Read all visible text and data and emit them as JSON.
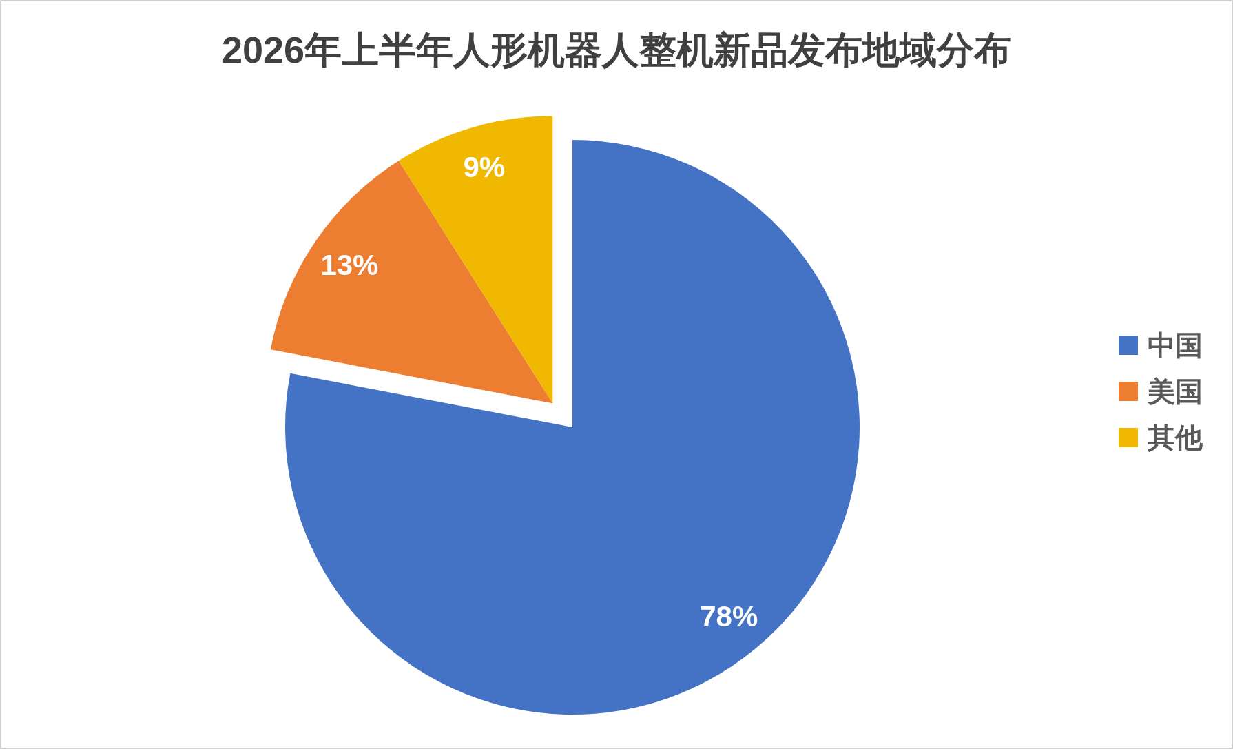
{
  "chart_data": {
    "type": "pie",
    "title": "2026年上半年人形机器人整机新品发布地域分布",
    "categories": [
      "中国",
      "美国",
      "其他"
    ],
    "values": [
      78,
      13,
      9
    ],
    "colors": [
      "#4472c4",
      "#ed7d31",
      "#f0b800"
    ],
    "value_labels": [
      "78%",
      "13%",
      "9%"
    ],
    "legend": "right"
  }
}
